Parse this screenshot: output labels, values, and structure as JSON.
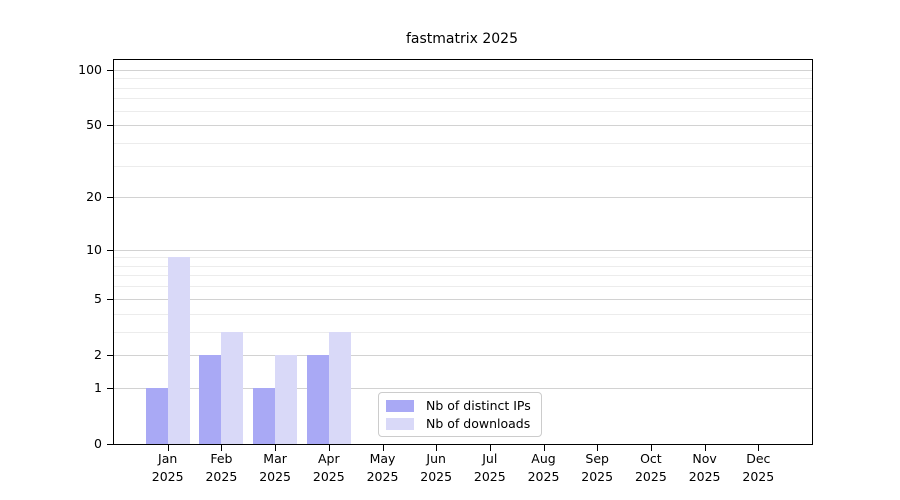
{
  "title": "fastmatrix 2025",
  "chart_data": {
    "type": "bar",
    "title": "fastmatrix 2025",
    "categories": [
      {
        "month": "Jan",
        "year": "2025"
      },
      {
        "month": "Feb",
        "year": "2025"
      },
      {
        "month": "Mar",
        "year": "2025"
      },
      {
        "month": "Apr",
        "year": "2025"
      },
      {
        "month": "May",
        "year": "2025"
      },
      {
        "month": "Jun",
        "year": "2025"
      },
      {
        "month": "Jul",
        "year": "2025"
      },
      {
        "month": "Aug",
        "year": "2025"
      },
      {
        "month": "Sep",
        "year": "2025"
      },
      {
        "month": "Oct",
        "year": "2025"
      },
      {
        "month": "Nov",
        "year": "2025"
      },
      {
        "month": "Dec",
        "year": "2025"
      }
    ],
    "series": [
      {
        "name": "Nb of distinct IPs",
        "color": "#a9a9f5",
        "values": [
          1,
          2,
          1,
          2,
          0,
          0,
          0,
          0,
          0,
          0,
          0,
          0
        ]
      },
      {
        "name": "Nb of downloads",
        "color": "#d9d9f8",
        "values": [
          9,
          3,
          2,
          3,
          0,
          0,
          0,
          0,
          0,
          0,
          0,
          0
        ]
      }
    ],
    "xlabel": "",
    "ylabel": "",
    "yscale": "log1p",
    "ylim": [
      0,
      113
    ],
    "yticks_major": [
      0,
      1,
      2,
      5,
      10,
      20,
      50,
      100
    ],
    "yticks_minor": [
      3,
      4,
      6,
      7,
      8,
      9,
      30,
      40,
      60,
      70,
      80,
      90
    ],
    "grid": true,
    "legend_position": "bottom-center",
    "colors": {
      "grid_major": "#d2d2d2",
      "grid_minor": "#ececec",
      "axis": "#000000",
      "background": "#ffffff"
    }
  }
}
